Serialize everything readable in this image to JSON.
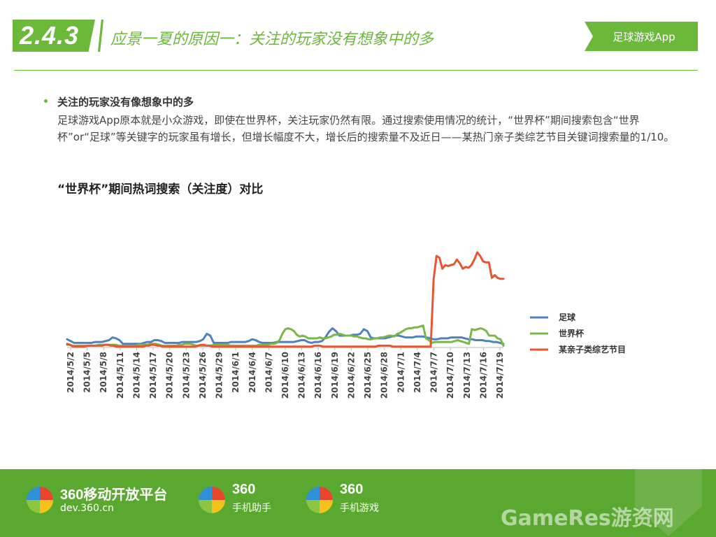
{
  "header": {
    "section_number": "2.4.3",
    "title": "应景一夏的原因一：关注的玩家没有想象中的多",
    "tag": "足球游戏App"
  },
  "bullet": {
    "title": "关注的玩家没有像想象中的多",
    "body": "足球游戏App原本就是小众游戏，即使在世界杯，关注玩家仍然有限。通过搜索使用情况的统计，“世界杯”期间搜索包含“世界杯”or“足球”等关键字的玩家虽有增长，但增长幅度不大，增长后的搜索量不及近日——某热门亲子类综艺节目关键词搜索量的1/10。"
  },
  "chart_title": "“世界杯”期间热词搜索（关注度）对比",
  "chart_data": {
    "type": "line",
    "title": "“世界杯”期间热词搜索（关注度）对比",
    "xlabel": "",
    "ylabel": "",
    "ylim": [
      0,
      100
    ],
    "grid": false,
    "legend_position": "right",
    "x_tick_labels": [
      "2014/5/2",
      "2014/5/5",
      "2014/5/8",
      "2014/5/11",
      "2014/5/14",
      "2014/5/17",
      "2014/5/20",
      "2014/5/23",
      "2014/5/26",
      "2014/5/29",
      "2014/6/1",
      "2014/6/4",
      "2014/6/7",
      "2014/6/10",
      "2014/6/13",
      "2014/6/16",
      "2014/6/19",
      "2014/6/22",
      "2014/6/25",
      "2014/6/28",
      "2014/7/1",
      "2014/7/4",
      "2014/7/7",
      "2014/7/10",
      "2014/7/13",
      "2014/7/16",
      "2014/7/19"
    ],
    "series": [
      {
        "name": "足球",
        "color": "#4f81bd",
        "values": [
          9,
          7,
          5,
          5,
          5,
          5,
          5,
          5,
          6,
          6,
          6,
          7,
          8,
          11,
          10,
          8,
          4,
          4,
          4,
          4,
          4,
          4,
          5,
          6,
          6,
          8,
          8,
          7,
          5,
          5,
          5,
          5,
          5,
          6,
          6,
          6,
          6,
          6,
          7,
          9,
          15,
          13,
          5,
          5,
          5,
          5,
          5,
          6,
          6,
          6,
          6,
          6,
          7,
          9,
          8,
          6,
          5,
          5,
          5,
          5,
          6,
          6,
          6,
          6,
          6,
          6,
          7,
          8,
          8,
          6,
          5,
          6,
          6,
          7,
          11,
          17,
          21,
          18,
          13,
          13,
          13,
          13,
          14,
          14,
          15,
          20,
          18,
          11,
          10,
          10,
          10,
          10,
          11,
          12,
          13,
          13,
          12,
          11,
          11,
          11,
          12,
          12,
          12,
          11,
          10,
          9,
          9,
          10,
          10,
          10,
          11,
          11,
          11,
          11,
          10,
          9,
          9,
          8,
          8,
          8,
          7,
          7,
          6,
          6,
          5,
          4
        ]
      },
      {
        "name": "世界杯",
        "color": "#7ab648",
        "values": [
          3,
          3,
          2,
          2,
          2,
          2,
          2,
          2,
          2,
          2,
          2,
          3,
          3,
          3,
          3,
          3,
          3,
          3,
          2,
          2,
          2,
          2,
          2,
          2,
          2,
          3,
          3,
          3,
          3,
          4,
          4,
          4,
          3,
          2,
          2,
          2,
          2,
          2,
          2,
          3,
          3,
          4,
          4,
          4,
          3,
          2,
          2,
          2,
          2,
          2,
          2,
          3,
          3,
          3,
          3,
          3,
          3,
          2,
          2,
          2,
          2,
          2,
          2,
          2,
          2,
          2,
          2,
          3,
          3,
          3,
          3,
          4,
          4,
          5,
          8,
          15,
          20,
          21,
          20,
          18,
          14,
          12,
          13,
          12,
          10,
          10,
          10,
          10,
          11,
          10,
          10,
          11,
          12,
          14,
          14,
          15,
          14,
          13,
          13,
          13,
          12,
          12,
          11,
          10,
          10,
          9,
          9,
          10,
          10,
          11,
          11,
          12,
          13,
          13,
          12,
          15,
          16,
          18,
          20,
          21,
          21,
          22,
          22,
          23,
          24,
          10,
          8,
          5,
          6,
          6,
          6,
          6,
          6,
          6,
          6,
          7,
          8,
          7,
          6,
          5,
          4,
          20,
          19,
          20,
          21,
          20,
          18,
          13,
          13,
          13,
          10,
          9,
          2
        ]
      },
      {
        "name": "某亲子类综艺节目",
        "color": "#e8562f",
        "values": [
          4,
          3,
          1,
          1,
          1,
          1,
          1,
          2,
          2,
          2,
          2,
          2,
          2,
          3,
          3,
          2,
          2,
          1,
          1,
          1,
          1,
          1,
          1,
          1,
          1,
          1,
          1,
          2,
          2,
          3,
          3,
          2,
          2,
          1,
          1,
          1,
          1,
          1,
          1,
          1,
          1,
          1,
          1,
          1,
          1,
          2,
          3,
          3,
          2,
          2,
          1,
          1,
          1,
          1,
          1,
          1,
          1,
          1,
          1,
          1,
          1,
          1,
          1,
          1,
          1,
          1,
          1,
          1,
          1,
          1,
          1,
          1,
          1,
          1,
          1,
          1,
          1,
          1,
          1,
          1,
          1,
          1,
          1,
          1,
          1,
          2,
          2,
          2,
          1,
          1,
          1,
          1,
          1,
          1,
          1,
          1,
          1,
          1,
          1,
          1,
          1,
          1,
          1,
          1,
          1,
          1,
          1,
          2,
          2,
          2,
          2,
          2,
          1,
          1,
          1,
          1,
          1,
          1,
          1,
          1,
          1,
          1,
          1,
          1,
          1,
          1,
          75,
          100,
          98,
          86,
          90,
          89,
          90,
          91,
          96,
          92,
          86,
          88,
          87,
          90,
          96,
          104,
          100,
          94,
          93,
          93,
          76,
          79,
          76,
          75,
          75
        ]
      }
    ]
  },
  "footer": {
    "brands": [
      {
        "name": "360移动开放平台",
        "sub": "dev.360.cn"
      },
      {
        "name": "360",
        "sub": "手机助手"
      },
      {
        "name": "360",
        "sub": "手机游戏"
      }
    ],
    "watermark": "GameRes游资网"
  }
}
